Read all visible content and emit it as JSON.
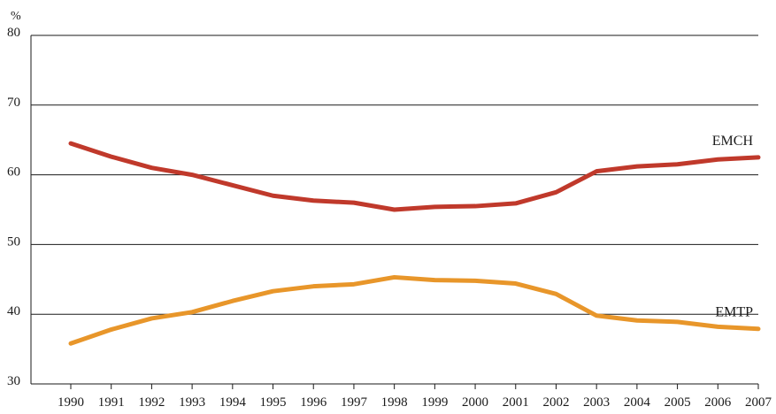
{
  "chart_data": {
    "type": "line",
    "title": "",
    "xlabel": "",
    "ylabel": "%",
    "x": [
      "1990",
      "1991",
      "1992",
      "1993",
      "1994",
      "1995",
      "1996",
      "1997",
      "1998",
      "1999",
      "2000",
      "2001",
      "2002",
      "2003",
      "2004",
      "2005",
      "2006",
      "2007"
    ],
    "y_ticks": [
      30,
      40,
      50,
      60,
      70,
      80
    ],
    "ylim": [
      30,
      80
    ],
    "grid": true,
    "legend": "none (series labeled directly at right end of lines)",
    "series": [
      {
        "name": "EMCH",
        "color": "#c0392b",
        "values": [
          64.5,
          62.6,
          61.0,
          60.0,
          58.5,
          57.0,
          56.3,
          56.0,
          55.0,
          55.4,
          55.5,
          55.9,
          57.5,
          60.5,
          61.2,
          61.5,
          62.2,
          62.5
        ]
      },
      {
        "name": "EMTP",
        "color": "#e8962a",
        "values": [
          35.8,
          37.8,
          39.4,
          40.3,
          41.9,
          43.3,
          44.0,
          44.3,
          45.3,
          44.9,
          44.8,
          44.4,
          42.9,
          39.8,
          39.1,
          38.9,
          38.2,
          37.9
        ]
      }
    ]
  }
}
